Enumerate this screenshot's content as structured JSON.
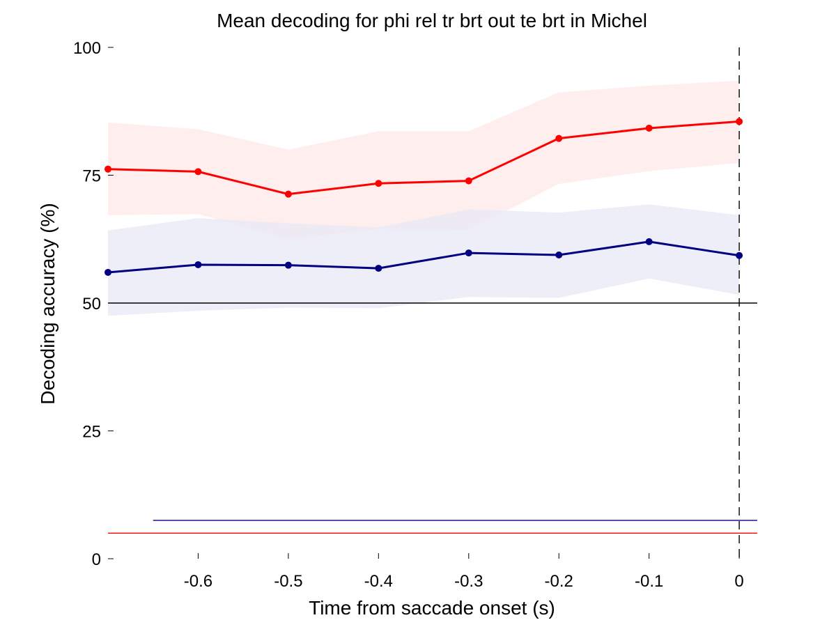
{
  "chart_data": {
    "type": "line",
    "title": "Mean decoding for phi rel tr brt out te brt in  Michel",
    "xlabel": "Time from saccade onset (s)",
    "ylabel": "Decoding accuracy (%)",
    "xlim": [
      -0.7,
      0.02
    ],
    "ylim": [
      0,
      100
    ],
    "xticks": [
      -0.6,
      -0.5,
      -0.4,
      -0.3,
      -0.2,
      -0.1,
      0
    ],
    "xtick_labels": [
      "-0.6",
      "-0.5",
      "-0.4",
      "-0.3",
      "-0.2",
      "-0.1",
      "0"
    ],
    "yticks": [
      0,
      25,
      50,
      75,
      100
    ],
    "ytick_labels": [
      "0",
      "25",
      "50",
      "75",
      "100"
    ],
    "grid": false,
    "x": [
      -0.7,
      -0.6,
      -0.5,
      -0.4,
      -0.3,
      -0.2,
      -0.1,
      0
    ],
    "series": [
      {
        "color": "#ff0000",
        "band_color": "#fde8e8",
        "values": [
          76.2,
          75.7,
          71.3,
          73.4,
          73.9,
          82.2,
          84.2,
          85.5
        ],
        "upper": [
          85.3,
          84.0,
          80.0,
          83.6,
          83.6,
          91.2,
          92.5,
          93.5
        ],
        "lower": [
          67.2,
          67.4,
          62.5,
          64.5,
          64.3,
          73.3,
          75.8,
          77.4
        ]
      },
      {
        "color": "#000080",
        "band_color": "#e8e8f6",
        "values": [
          56.0,
          57.5,
          57.4,
          56.8,
          59.8,
          59.4,
          62.0,
          59.3
        ],
        "upper": [
          64.2,
          66.6,
          65.6,
          64.8,
          68.3,
          67.7,
          69.3,
          67.2
        ],
        "lower": [
          47.5,
          48.5,
          49.1,
          49.0,
          51.2,
          51.0,
          54.8,
          51.6
        ]
      }
    ],
    "reference_lines": [
      {
        "orientation": "horizontal",
        "y": 50,
        "color": "#000000",
        "style": "solid"
      },
      {
        "orientation": "vertical",
        "x": 0,
        "color": "#000000",
        "style": "dashed"
      },
      {
        "orientation": "horizontal",
        "y": 7.5,
        "x_range": [
          -0.65,
          0.02
        ],
        "color": "#000080",
        "style": "solid"
      },
      {
        "orientation": "horizontal",
        "y": 5.0,
        "x_range": [
          -0.7,
          0.02
        ],
        "color": "#ff0000",
        "style": "solid"
      }
    ]
  }
}
